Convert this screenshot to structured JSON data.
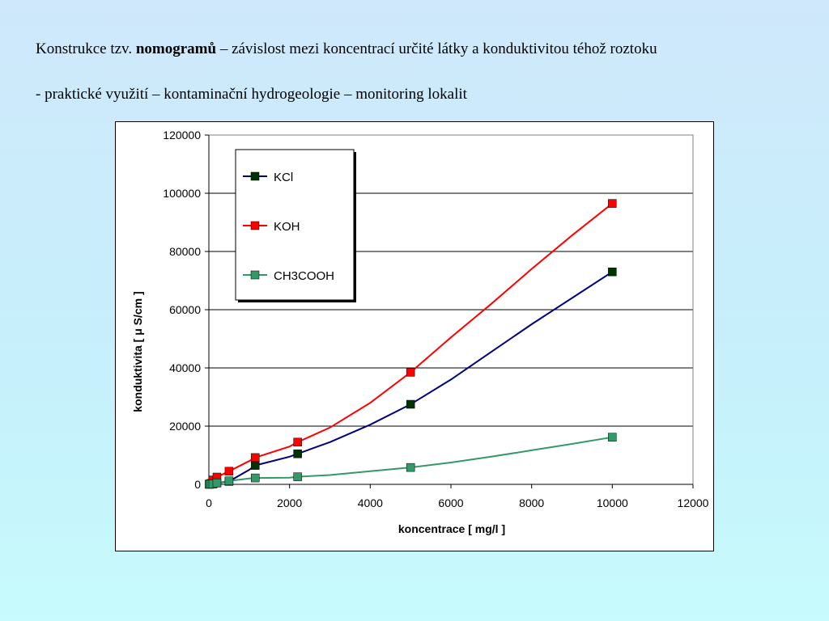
{
  "header": {
    "line1_prefix": "Konstrukce tzv. ",
    "line1_bold": "nomogramů",
    "line1_suffix": " – závislost mezi koncentrací určité látky a konduktivitou téhož roztoku",
    "line2": "- praktické využití – kontaminační hydrogeologie – monitoring lokalit"
  },
  "chart_data": {
    "type": "line",
    "xlabel": "koncentrace [ mg/l ]",
    "ylabel": "konduktivita [ μ S/cm ]",
    "xlim": [
      0,
      12000
    ],
    "ylim": [
      0,
      120000
    ],
    "x_ticks": [
      0,
      2000,
      4000,
      6000,
      8000,
      10000,
      12000
    ],
    "y_ticks": [
      0,
      20000,
      40000,
      60000,
      80000,
      100000,
      120000
    ],
    "grid": "horizontal",
    "legend_position": "top-left",
    "series": [
      {
        "name": "KCl",
        "color": "#00007f",
        "marker_color": "#003300",
        "x": [
          10,
          50,
          100,
          200,
          500,
          1000,
          1150,
          2000,
          2200,
          3000,
          4000,
          5000,
          6000,
          7000,
          8000,
          9000,
          10000
        ],
        "y": [
          20,
          100,
          200,
          450,
          1000,
          5000,
          6500,
          9500,
          10500,
          14500,
          20500,
          27500,
          36000,
          45500,
          55000,
          64000,
          73000
        ],
        "markers_at": [
          0,
          1,
          2,
          3,
          4,
          6,
          8,
          11,
          16
        ]
      },
      {
        "name": "KOH",
        "color": "#ff0000",
        "marker_color": "#ff0000",
        "x": [
          10,
          50,
          100,
          200,
          500,
          1000,
          1150,
          2000,
          2200,
          3000,
          4000,
          5000,
          6000,
          7000,
          8000,
          9000,
          10000
        ],
        "y": [
          100,
          300,
          1500,
          2500,
          4500,
          8000,
          9200,
          13000,
          14500,
          19500,
          28000,
          38500,
          50500,
          62000,
          74000,
          85500,
          96500
        ],
        "markers_at": [
          0,
          1,
          2,
          3,
          4,
          6,
          8,
          11,
          16
        ]
      },
      {
        "name": "CH3COOH",
        "color": "#339966",
        "marker_color": "#339966",
        "x": [
          10,
          50,
          100,
          200,
          500,
          1000,
          1150,
          2000,
          2200,
          3000,
          4000,
          5000,
          6000,
          7000,
          8000,
          9000,
          10000
        ],
        "y": [
          10,
          50,
          100,
          500,
          1200,
          2000,
          2200,
          2300,
          2600,
          3200,
          4500,
          5800,
          7500,
          9500,
          11700,
          13900,
          16200
        ],
        "markers_at": [
          0,
          1,
          2,
          3,
          4,
          6,
          8,
          11,
          16
        ]
      }
    ]
  }
}
